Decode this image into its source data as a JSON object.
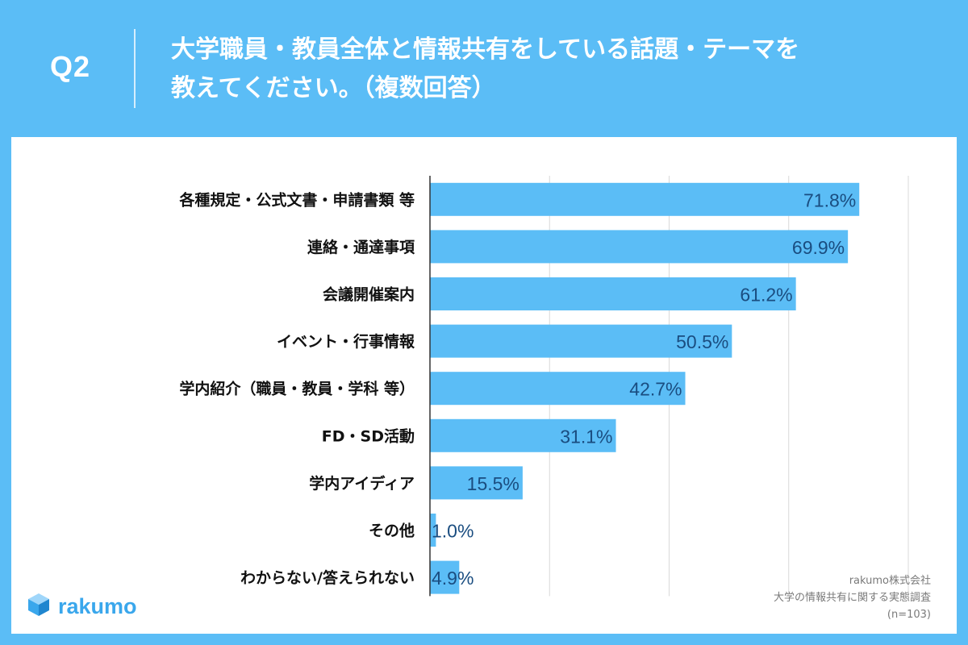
{
  "header": {
    "question_label": "Q2",
    "question_line1": "大学職員・教員全体と情報共有をしている話題・テーマを",
    "question_line2": "教えてください。（複数回答）"
  },
  "brand": {
    "name": "rakumo",
    "icon": "cube-logo-icon"
  },
  "source": {
    "company": "rakumo株式会社",
    "survey": "大学の情報共有に関する実態調査",
    "sample": "(n=103)"
  },
  "colors": {
    "background": "#5bbdf6",
    "bar": "#5bbdf6",
    "value_label": "#1a4d80",
    "grid": "#d9d9d9",
    "axis": "#333333"
  },
  "chart_data": {
    "type": "bar",
    "orientation": "horizontal",
    "categories": [
      "各種規定・公式文書・申請書類 等",
      "連絡・通達事項",
      "会議開催案内",
      "イベント・行事情報",
      "学内紹介（職員・教員・学科 等）",
      "FD・SD活動",
      "学内アイディア",
      "その他",
      "わからない/答えられない"
    ],
    "values": [
      71.8,
      69.9,
      61.2,
      50.5,
      42.7,
      31.1,
      15.5,
      1.0,
      4.9
    ],
    "value_labels": [
      "71.8%",
      "69.9%",
      "61.2%",
      "50.5%",
      "42.7%",
      "31.1%",
      "15.5%",
      "1.0%",
      "4.9%"
    ],
    "xlim": [
      0,
      80
    ],
    "grid": true
  }
}
